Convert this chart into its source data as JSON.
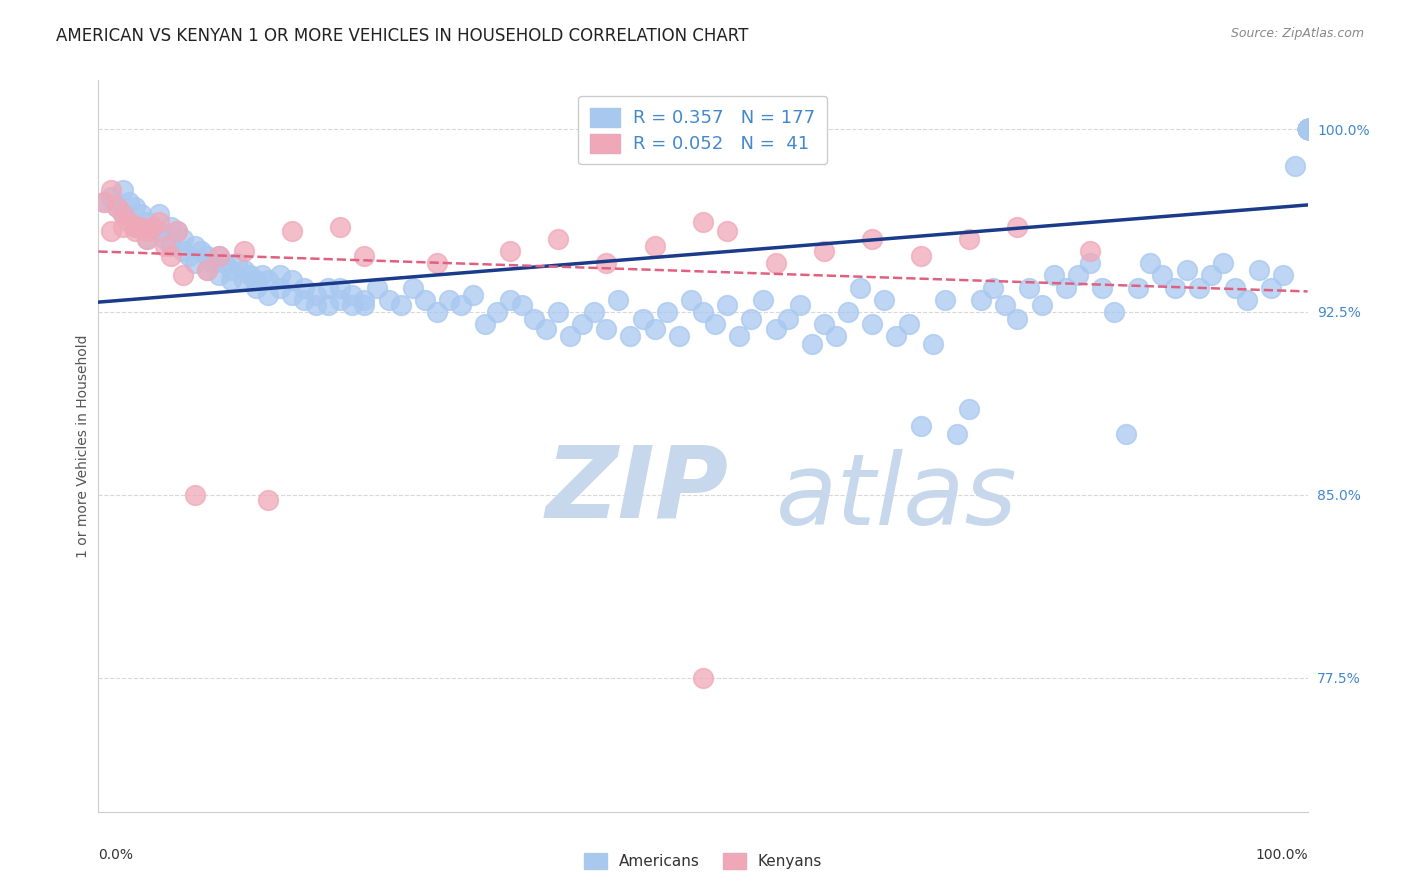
{
  "title": "AMERICAN VS KENYAN 1 OR MORE VEHICLES IN HOUSEHOLD CORRELATION CHART",
  "source": "Source: ZipAtlas.com",
  "ylabel": "1 or more Vehicles in Household",
  "ytick_labels": [
    "77.5%",
    "85.0%",
    "92.5%",
    "100.0%"
  ],
  "ytick_values": [
    0.775,
    0.85,
    0.925,
    1.0
  ],
  "xlim": [
    0.0,
    1.0
  ],
  "ylim": [
    0.72,
    1.02
  ],
  "color_american": "#a8c8f0",
  "color_kenyan": "#f0a8b8",
  "color_american_line": "#1a3a8a",
  "color_kenyan_line": "#e06080",
  "watermark_zip_color": "#c8d8ec",
  "watermark_atlas_color": "#c8d8ec",
  "background_color": "#ffffff",
  "grid_color": "#d8d8d8",
  "title_fontsize": 12,
  "axis_label_fontsize": 10,
  "tick_fontsize": 10,
  "legend_fontsize": 12,
  "R_american": 0.357,
  "N_american": 177,
  "R_kenyan": 0.052,
  "N_kenyan": 41,
  "american_x": [
    0.005,
    0.01,
    0.015,
    0.02,
    0.02,
    0.025,
    0.03,
    0.03,
    0.035,
    0.04,
    0.04,
    0.045,
    0.05,
    0.05,
    0.055,
    0.06,
    0.06,
    0.065,
    0.07,
    0.07,
    0.075,
    0.08,
    0.08,
    0.085,
    0.09,
    0.09,
    0.095,
    0.1,
    0.1,
    0.105,
    0.11,
    0.11,
    0.115,
    0.12,
    0.12,
    0.125,
    0.13,
    0.13,
    0.135,
    0.14,
    0.14,
    0.15,
    0.15,
    0.16,
    0.16,
    0.17,
    0.17,
    0.18,
    0.18,
    0.19,
    0.19,
    0.2,
    0.2,
    0.21,
    0.21,
    0.22,
    0.22,
    0.23,
    0.24,
    0.25,
    0.26,
    0.27,
    0.28,
    0.29,
    0.3,
    0.31,
    0.32,
    0.33,
    0.34,
    0.35,
    0.36,
    0.37,
    0.38,
    0.39,
    0.4,
    0.41,
    0.42,
    0.43,
    0.44,
    0.45,
    0.46,
    0.47,
    0.48,
    0.49,
    0.5,
    0.51,
    0.52,
    0.53,
    0.54,
    0.55,
    0.56,
    0.57,
    0.58,
    0.59,
    0.6,
    0.61,
    0.62,
    0.63,
    0.64,
    0.65,
    0.66,
    0.67,
    0.68,
    0.69,
    0.7,
    0.71,
    0.72,
    0.73,
    0.74,
    0.75,
    0.76,
    0.77,
    0.78,
    0.79,
    0.8,
    0.81,
    0.82,
    0.83,
    0.84,
    0.85,
    0.86,
    0.87,
    0.88,
    0.89,
    0.9,
    0.91,
    0.92,
    0.93,
    0.94,
    0.95,
    0.96,
    0.97,
    0.98,
    0.99,
    1.0,
    1.0,
    1.0,
    1.0,
    1.0,
    1.0,
    1.0,
    1.0,
    1.0,
    1.0,
    1.0,
    1.0,
    1.0,
    1.0,
    1.0,
    1.0,
    1.0,
    1.0,
    1.0,
    1.0,
    1.0,
    1.0,
    1.0,
    1.0,
    1.0,
    1.0,
    1.0,
    1.0,
    1.0,
    1.0,
    1.0,
    1.0,
    1.0,
    1.0,
    1.0,
    1.0,
    1.0,
    1.0,
    1.0,
    1.0,
    1.0,
    1.0,
    1.0
  ],
  "american_y": [
    0.97,
    0.972,
    0.968,
    0.975,
    0.965,
    0.97,
    0.968,
    0.96,
    0.965,
    0.955,
    0.962,
    0.96,
    0.958,
    0.965,
    0.955,
    0.96,
    0.952,
    0.958,
    0.95,
    0.955,
    0.948,
    0.952,
    0.945,
    0.95,
    0.948,
    0.942,
    0.945,
    0.948,
    0.94,
    0.945,
    0.942,
    0.938,
    0.945,
    0.942,
    0.938,
    0.94,
    0.938,
    0.935,
    0.94,
    0.938,
    0.932,
    0.935,
    0.94,
    0.932,
    0.938,
    0.93,
    0.935,
    0.928,
    0.932,
    0.935,
    0.928,
    0.93,
    0.935,
    0.928,
    0.932,
    0.93,
    0.928,
    0.935,
    0.93,
    0.928,
    0.935,
    0.93,
    0.925,
    0.93,
    0.928,
    0.932,
    0.92,
    0.925,
    0.93,
    0.928,
    0.922,
    0.918,
    0.925,
    0.915,
    0.92,
    0.925,
    0.918,
    0.93,
    0.915,
    0.922,
    0.918,
    0.925,
    0.915,
    0.93,
    0.925,
    0.92,
    0.928,
    0.915,
    0.922,
    0.93,
    0.918,
    0.922,
    0.928,
    0.912,
    0.92,
    0.915,
    0.925,
    0.935,
    0.92,
    0.93,
    0.915,
    0.92,
    0.878,
    0.912,
    0.93,
    0.875,
    0.885,
    0.93,
    0.935,
    0.928,
    0.922,
    0.935,
    0.928,
    0.94,
    0.935,
    0.94,
    0.945,
    0.935,
    0.925,
    0.875,
    0.935,
    0.945,
    0.94,
    0.935,
    0.942,
    0.935,
    0.94,
    0.945,
    0.935,
    0.93,
    0.942,
    0.935,
    0.94,
    0.985,
    1.0,
    1.0,
    1.0,
    1.0,
    1.0,
    1.0,
    1.0,
    1.0,
    1.0,
    1.0,
    1.0,
    1.0,
    1.0,
    1.0,
    1.0,
    1.0,
    1.0,
    1.0,
    1.0,
    1.0,
    1.0,
    1.0,
    1.0,
    1.0,
    1.0,
    1.0,
    1.0,
    1.0,
    1.0,
    1.0,
    1.0,
    1.0,
    1.0,
    1.0,
    1.0,
    1.0,
    1.0,
    1.0,
    1.0,
    1.0,
    1.0,
    1.0,
    1.0
  ],
  "kenyan_x": [
    0.005,
    0.01,
    0.01,
    0.015,
    0.02,
    0.02,
    0.025,
    0.03,
    0.03,
    0.035,
    0.04,
    0.04,
    0.045,
    0.05,
    0.055,
    0.06,
    0.065,
    0.07,
    0.08,
    0.09,
    0.1,
    0.12,
    0.14,
    0.16,
    0.2,
    0.22,
    0.28,
    0.34,
    0.38,
    0.42,
    0.46,
    0.5,
    0.52,
    0.56,
    0.6,
    0.64,
    0.68,
    0.72,
    0.76,
    0.82,
    0.5
  ],
  "kenyan_y": [
    0.97,
    0.975,
    0.958,
    0.968,
    0.965,
    0.96,
    0.962,
    0.96,
    0.958,
    0.96,
    0.958,
    0.955,
    0.96,
    0.962,
    0.952,
    0.948,
    0.958,
    0.94,
    0.85,
    0.942,
    0.948,
    0.95,
    0.848,
    0.958,
    0.96,
    0.948,
    0.945,
    0.95,
    0.955,
    0.945,
    0.952,
    0.962,
    0.958,
    0.945,
    0.95,
    0.955,
    0.948,
    0.955,
    0.96,
    0.95,
    0.775
  ]
}
